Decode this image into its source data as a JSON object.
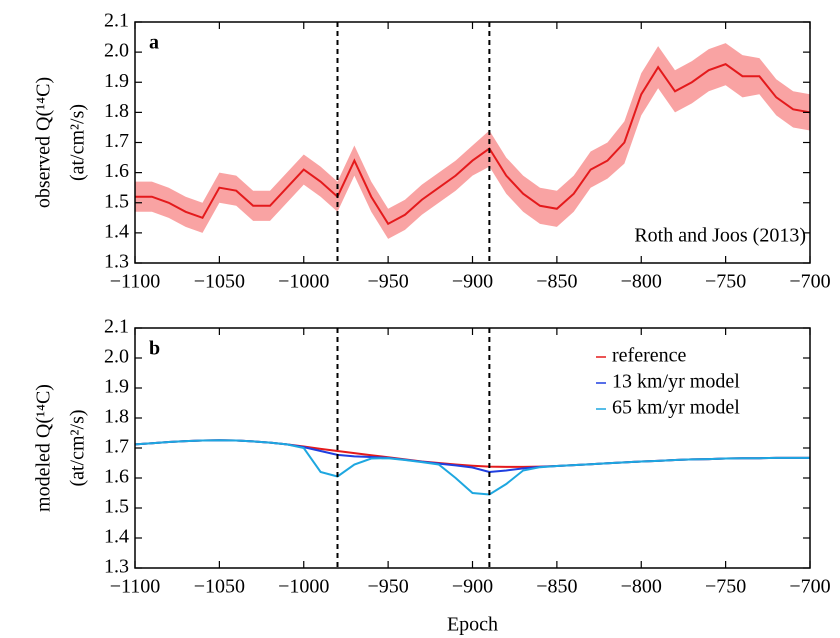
{
  "chart_data": [
    {
      "type": "line",
      "panel_label": "a",
      "ylabel": [
        "observed Q(¹⁴C)",
        "(at/cm²/s)"
      ],
      "annotation": "Roth and Joos (2013)",
      "x": [
        -1100,
        -1090,
        -1080,
        -1070,
        -1060,
        -1050,
        -1040,
        -1030,
        -1020,
        -1010,
        -1000,
        -990,
        -980,
        -970,
        -960,
        -950,
        -940,
        -930,
        -920,
        -910,
        -900,
        -890,
        -880,
        -870,
        -860,
        -850,
        -840,
        -830,
        -820,
        -810,
        -800,
        -790,
        -780,
        -770,
        -760,
        -750,
        -740,
        -730,
        -720,
        -710,
        -700
      ],
      "series": [
        {
          "color": "#e41a1c",
          "band_color": "#f9a3a3",
          "values": [
            1.52,
            1.52,
            1.5,
            1.47,
            1.45,
            1.55,
            1.54,
            1.49,
            1.49,
            1.55,
            1.61,
            1.57,
            1.52,
            1.64,
            1.52,
            1.43,
            1.46,
            1.51,
            1.55,
            1.59,
            1.64,
            1.68,
            1.59,
            1.53,
            1.49,
            1.48,
            1.53,
            1.61,
            1.64,
            1.7,
            1.86,
            1.95,
            1.87,
            1.9,
            1.94,
            1.96,
            1.92,
            1.92,
            1.85,
            1.81,
            1.8
          ],
          "upper": [
            1.57,
            1.57,
            1.55,
            1.52,
            1.5,
            1.6,
            1.59,
            1.54,
            1.54,
            1.6,
            1.66,
            1.62,
            1.57,
            1.69,
            1.57,
            1.48,
            1.51,
            1.56,
            1.6,
            1.64,
            1.69,
            1.74,
            1.65,
            1.59,
            1.55,
            1.54,
            1.59,
            1.67,
            1.7,
            1.77,
            1.93,
            2.02,
            1.94,
            1.97,
            2.01,
            2.03,
            1.99,
            1.98,
            1.91,
            1.87,
            1.86
          ],
          "lower": [
            1.47,
            1.47,
            1.45,
            1.42,
            1.4,
            1.5,
            1.49,
            1.44,
            1.44,
            1.5,
            1.56,
            1.52,
            1.47,
            1.59,
            1.47,
            1.38,
            1.41,
            1.46,
            1.5,
            1.54,
            1.59,
            1.62,
            1.53,
            1.47,
            1.43,
            1.42,
            1.47,
            1.55,
            1.58,
            1.63,
            1.79,
            1.88,
            1.8,
            1.83,
            1.87,
            1.89,
            1.85,
            1.86,
            1.79,
            1.75,
            1.74
          ]
        }
      ],
      "vlines": [
        -980,
        -890
      ],
      "xlim": [
        -1100,
        -700
      ],
      "xticks": [
        {
          "value": -1100,
          "label": "−1100"
        },
        {
          "value": -1050,
          "label": "−1050"
        },
        {
          "value": -1000,
          "label": "−1000"
        },
        {
          "value": -950,
          "label": "−950"
        },
        {
          "value": -900,
          "label": "−900"
        },
        {
          "value": -850,
          "label": "−850"
        },
        {
          "value": -800,
          "label": "−800"
        },
        {
          "value": -750,
          "label": "−750"
        },
        {
          "value": -700,
          "label": "−700"
        }
      ],
      "ylim": [
        1.3,
        2.1
      ],
      "yticks": [
        1.3,
        1.4,
        1.5,
        1.6,
        1.7,
        1.8,
        1.9,
        {
          "value": 2.0,
          "label": "2.0"
        },
        2.1
      ]
    },
    {
      "type": "line",
      "panel_label": "b",
      "ylabel": [
        "modeled Q(¹⁴C)",
        "(at/cm²/s)"
      ],
      "xlabel": "Epoch",
      "x": [
        -1100,
        -1090,
        -1080,
        -1070,
        -1060,
        -1050,
        -1040,
        -1030,
        -1020,
        -1010,
        -1000,
        -990,
        -980,
        -970,
        -960,
        -950,
        -940,
        -930,
        -920,
        -910,
        -900,
        -890,
        -880,
        -870,
        -860,
        -850,
        -840,
        -830,
        -820,
        -810,
        -800,
        -790,
        -780,
        -770,
        -760,
        -750,
        -740,
        -730,
        -720,
        -710,
        -700
      ],
      "series": [
        {
          "name": "reference",
          "color": "#e41a1c",
          "values": [
            1.712,
            1.716,
            1.72,
            1.723,
            1.725,
            1.726,
            1.725,
            1.722,
            1.718,
            1.712,
            1.705,
            1.697,
            1.69,
            1.683,
            1.676,
            1.669,
            1.662,
            1.655,
            1.65,
            1.645,
            1.641,
            1.638,
            1.637,
            1.637,
            1.638,
            1.64,
            1.643,
            1.646,
            1.649,
            1.652,
            1.655,
            1.657,
            1.66,
            1.662,
            1.663,
            1.665,
            1.666,
            1.666,
            1.667,
            1.667,
            1.667
          ]
        },
        {
          "name": "13 km/yr model",
          "color": "#1f3fe0",
          "values": [
            1.712,
            1.716,
            1.72,
            1.723,
            1.725,
            1.726,
            1.725,
            1.722,
            1.718,
            1.712,
            1.703,
            1.69,
            1.677,
            1.672,
            1.67,
            1.667,
            1.661,
            1.654,
            1.648,
            1.642,
            1.635,
            1.62,
            1.625,
            1.632,
            1.637,
            1.64,
            1.643,
            1.646,
            1.649,
            1.652,
            1.655,
            1.657,
            1.66,
            1.662,
            1.663,
            1.665,
            1.666,
            1.666,
            1.667,
            1.667,
            1.667
          ]
        },
        {
          "name": "65 km/yr model",
          "color": "#1ea7e0",
          "values": [
            1.712,
            1.716,
            1.72,
            1.723,
            1.725,
            1.726,
            1.725,
            1.722,
            1.718,
            1.712,
            1.7,
            1.62,
            1.605,
            1.645,
            1.665,
            1.666,
            1.66,
            1.653,
            1.645,
            1.6,
            1.55,
            1.545,
            1.58,
            1.625,
            1.636,
            1.64,
            1.643,
            1.646,
            1.649,
            1.652,
            1.655,
            1.657,
            1.66,
            1.662,
            1.663,
            1.665,
            1.666,
            1.666,
            1.667,
            1.667,
            1.667
          ]
        }
      ],
      "vlines": [
        -980,
        -890
      ],
      "xlim": [
        -1100,
        -700
      ],
      "xticks": [
        {
          "value": -1100,
          "label": "−1100"
        },
        {
          "value": -1050,
          "label": "−1050"
        },
        {
          "value": -1000,
          "label": "−1000"
        },
        {
          "value": -950,
          "label": "−950"
        },
        {
          "value": -900,
          "label": "−900"
        },
        {
          "value": -850,
          "label": "−850"
        },
        {
          "value": -800,
          "label": "−800"
        },
        {
          "value": -750,
          "label": "−750"
        },
        {
          "value": -700,
          "label": "−700"
        }
      ],
      "ylim": [
        1.3,
        2.1
      ],
      "yticks": [
        1.3,
        1.4,
        1.5,
        1.6,
        1.7,
        1.8,
        1.9,
        {
          "value": 2.0,
          "label": "2.0"
        },
        2.1
      ]
    }
  ]
}
